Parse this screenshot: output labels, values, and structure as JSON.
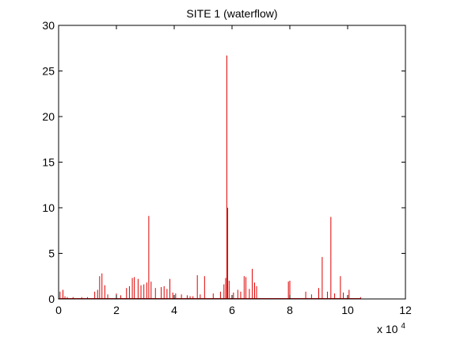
{
  "chart_data": {
    "type": "line",
    "title": "SITE 1 (waterflow)",
    "xlabel": "",
    "ylabel": "",
    "x_exponent_label": "x 10",
    "x_exponent_power": "4",
    "xlim": [
      0,
      12
    ],
    "ylim": [
      0,
      30
    ],
    "x_ticks": [
      "0",
      "2",
      "4",
      "6",
      "8",
      "10",
      "12"
    ],
    "y_ticks": [
      "0",
      "5",
      "10",
      "15",
      "20",
      "25",
      "30"
    ],
    "grid": false,
    "series_color": "#e00000",
    "series": [
      {
        "name": "",
        "x": [
          0.05,
          0.15,
          0.22,
          0.3,
          0.5,
          0.8,
          1.0,
          1.25,
          1.35,
          1.42,
          1.5,
          1.6,
          1.7,
          2.0,
          2.15,
          2.35,
          2.45,
          2.55,
          2.62,
          2.75,
          2.85,
          2.95,
          3.05,
          3.12,
          3.2,
          3.35,
          3.55,
          3.65,
          3.75,
          3.85,
          3.95,
          4.05,
          4.25,
          4.45,
          4.55,
          4.65,
          4.8,
          4.9,
          5.05,
          5.35,
          5.6,
          5.72,
          5.78,
          5.82,
          5.85,
          5.9,
          6.05,
          6.2,
          6.3,
          6.42,
          6.48,
          6.6,
          6.7,
          6.78,
          6.85,
          7.95,
          8.0,
          8.55,
          8.75,
          9.0,
          9.12,
          9.3,
          9.42,
          9.55,
          9.75,
          9.85,
          10.05,
          10.45
        ],
        "values": [
          0.8,
          1.0,
          0.3,
          0.2,
          0.2,
          0.2,
          0.2,
          0.8,
          1.0,
          2.5,
          2.8,
          1.5,
          0.5,
          0.6,
          0.4,
          1.2,
          1.4,
          2.3,
          2.4,
          2.2,
          1.5,
          1.6,
          1.8,
          9.1,
          1.9,
          1.2,
          1.3,
          1.4,
          1.1,
          2.2,
          0.7,
          0.6,
          0.5,
          0.4,
          0.3,
          0.3,
          2.6,
          0.5,
          2.5,
          0.6,
          0.8,
          1.6,
          2.3,
          26.7,
          10.0,
          2.0,
          0.7,
          1.0,
          0.8,
          2.5,
          2.4,
          1.1,
          3.3,
          1.8,
          1.4,
          1.9,
          2.0,
          0.8,
          0.5,
          1.2,
          4.6,
          0.8,
          9.0,
          0.6,
          2.5,
          0.7,
          1.0,
          0.2
        ]
      }
    ]
  }
}
